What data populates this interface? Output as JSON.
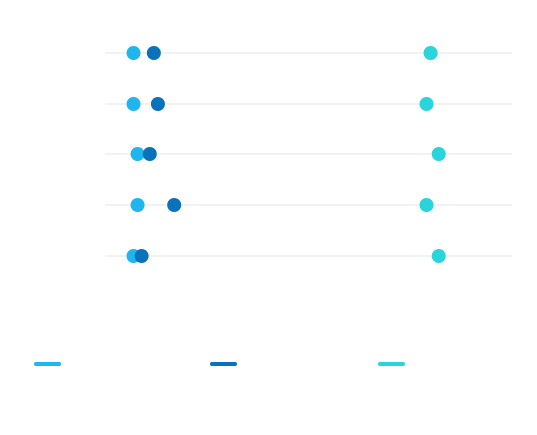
{
  "chart_data": {
    "type": "scatter",
    "title": "",
    "xlabel": "",
    "ylabel": "",
    "categories": [
      "",
      "",
      "",
      "",
      ""
    ],
    "xlim": [
      0,
      100
    ],
    "grid": true,
    "legend_position": "bottom",
    "series": [
      {
        "values": [
          7,
          7,
          8,
          8,
          7
        ],
        "color": "#1fb6ef"
      },
      {
        "values": [
          12,
          13,
          11,
          17,
          9
        ],
        "color": "#0a72ba"
      },
      {
        "values": [
          80,
          79,
          82,
          79,
          82
        ],
        "color": "#2ad4dc"
      }
    ]
  }
}
